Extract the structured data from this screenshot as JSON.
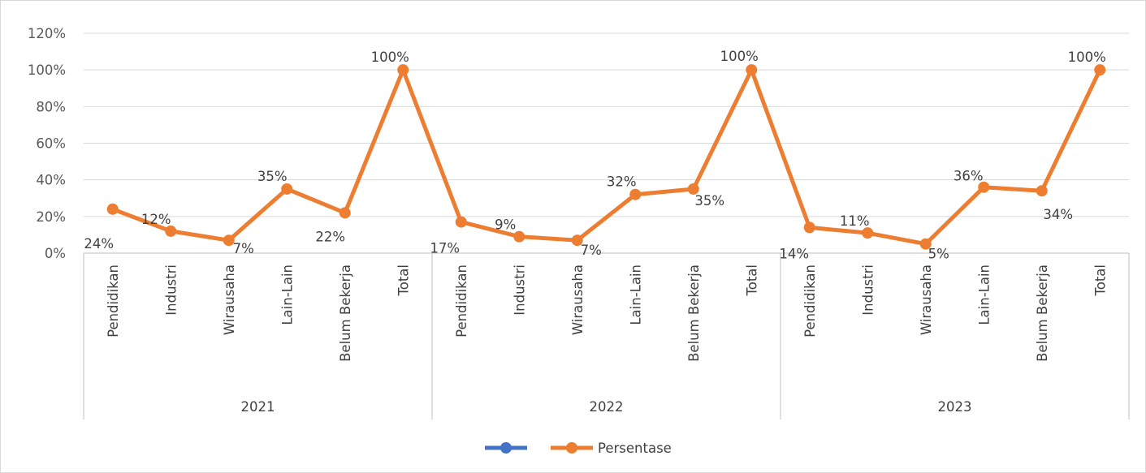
{
  "chart_data": {
    "type": "line",
    "groups": [
      {
        "label": "2021",
        "categories": [
          "Pendidikan",
          "Industri",
          "Wirausaha",
          "Lain-Lain",
          "Belum Bekerja",
          "Total"
        ]
      },
      {
        "label": "2022",
        "categories": [
          "Pendidikan",
          "Industri",
          "Wirausaha",
          "Lain-Lain",
          "Belum Bekerja",
          "Total"
        ]
      },
      {
        "label": "2023",
        "categories": [
          "Pendidikan",
          "Industri",
          "Wirausaha",
          "Lain-Lain",
          "Belum Bekerja",
          "Total"
        ]
      }
    ],
    "series": [
      {
        "name": "",
        "color": "#4472c4",
        "values": []
      },
      {
        "name": "Persentase",
        "color": "#ed7d31",
        "values": [
          24,
          12,
          7,
          35,
          22,
          100,
          17,
          9,
          7,
          32,
          35,
          100,
          14,
          11,
          5,
          36,
          34,
          100
        ],
        "data_labels": [
          "24%",
          "12%",
          "7%",
          "35%",
          "22%",
          "100%",
          "17%",
          "9%",
          "7%",
          "32%",
          "35%",
          "100%",
          "14%",
          "11%",
          "5%",
          "36%",
          "34%",
          "100%"
        ]
      }
    ],
    "y_axis": {
      "min": 0,
      "max": 120,
      "step": 20,
      "tick_labels": [
        "0%",
        "20%",
        "40%",
        "60%",
        "80%",
        "100%",
        "120%"
      ]
    },
    "grid": true,
    "legend_position": "bottom",
    "title": "",
    "xlabel": "",
    "ylabel": ""
  }
}
